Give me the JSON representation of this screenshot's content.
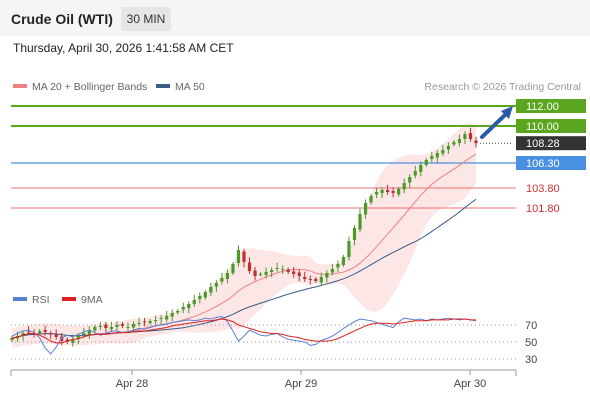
{
  "header": {
    "title": "Crude Oil (WTI)",
    "timeframe": "30 MIN",
    "datetime": "Thursday, April 30, 2026 1:41:58 AM CET"
  },
  "legend": {
    "ma20": "MA 20 + Bollinger Bands",
    "ma50": "MA 50",
    "credit": "Research © 2026 Trading Central",
    "rsi": "RSI",
    "rsi_ma": "9MA"
  },
  "colors": {
    "resistance": "#5aa61e",
    "pivot": "#4a90e2",
    "support": "#e05050",
    "current": "#333333",
    "ma20": "#f08080",
    "ma50": "#3a5a8a",
    "bollinger_fill": "#fde2e2",
    "rsi": "#5b7fd4",
    "rsi_ma": "#e02020",
    "arrow": "#2a5aa8"
  },
  "chart_data": [
    {
      "type": "line",
      "subtype": "candlestick",
      "x": [
        "Apr 28",
        "Apr 29",
        "Apr 30"
      ],
      "levels": [
        {
          "value": 112.0,
          "label": "112.00",
          "kind": "resistance"
        },
        {
          "value": 110.0,
          "label": "110.00",
          "kind": "resistance"
        },
        {
          "value": 108.28,
          "label": "108.28",
          "kind": "current"
        },
        {
          "value": 106.3,
          "label": "106.30",
          "kind": "pivot"
        },
        {
          "value": 103.8,
          "label": "103.80",
          "kind": "support"
        },
        {
          "value": 101.8,
          "label": "101.80",
          "kind": "support"
        }
      ],
      "series": [
        {
          "name": "MA 20 + Bollinger Bands"
        },
        {
          "name": "MA 50"
        }
      ],
      "price_path": [
        88.8,
        89.0,
        89.3,
        89.4,
        89.3,
        89.5,
        89.4,
        89.2,
        88.9,
        88.5,
        88.4,
        88.7,
        89.0,
        89.3,
        89.6,
        89.9,
        90.0,
        89.8,
        89.9,
        90.1,
        90.0,
        89.9,
        90.2,
        90.3,
        90.4,
        90.5,
        90.6,
        90.8,
        91.0,
        91.3,
        91.5,
        91.9,
        92.2,
        92.6,
        93.0,
        93.4,
        93.9,
        94.3,
        94.8,
        95.3,
        96.2,
        97.6,
        96.4,
        95.5,
        95.0,
        95.2,
        95.4,
        95.6,
        95.8,
        95.7,
        95.4,
        95.2,
        95.0,
        94.7,
        94.6,
        94.5,
        94.9,
        95.3,
        95.7,
        96.2,
        96.9,
        98.5,
        99.8,
        101.2,
        102.3,
        103.0,
        103.4,
        103.6,
        103.4,
        103.3,
        103.7,
        104.3,
        104.9,
        105.5,
        106.1,
        106.6,
        107.0,
        107.3,
        107.6,
        108.0,
        108.4,
        108.7,
        109.2,
        108.7,
        108.28
      ],
      "annotation": {
        "type": "arrow",
        "direction": "up",
        "target": "112.00"
      }
    },
    {
      "type": "line",
      "y_ticks": [
        70,
        50,
        30
      ],
      "ylim": [
        20,
        80
      ],
      "series": [
        {
          "name": "RSI"
        },
        {
          "name": "9MA"
        }
      ],
      "rsi_path": [
        57,
        60,
        63,
        64,
        61,
        55,
        43,
        36,
        44,
        55,
        58,
        56,
        59,
        62,
        64,
        61,
        58,
        60,
        63,
        63,
        61,
        62,
        64,
        66,
        65,
        67,
        69,
        70,
        71,
        73,
        74,
        75,
        76,
        75,
        76,
        78,
        77,
        79,
        80,
        74,
        63,
        51,
        57,
        64,
        61,
        58,
        57,
        59,
        60,
        56,
        53,
        52,
        51,
        50,
        46,
        47,
        52,
        54,
        57,
        61,
        66,
        70,
        74,
        77,
        76,
        75,
        73,
        71,
        69,
        67,
        74,
        78,
        77,
        76,
        77,
        75,
        77,
        76,
        77,
        78,
        77,
        76,
        77,
        76,
        75
      ],
      "rsi_ma_path": [
        54,
        56,
        58,
        60,
        60,
        58,
        55,
        51,
        49,
        49,
        51,
        53,
        54,
        56,
        58,
        59,
        59,
        59,
        60,
        61,
        61,
        61,
        62,
        63,
        63,
        64,
        65,
        66,
        67,
        69,
        70,
        71,
        72,
        73,
        74,
        75,
        75,
        76,
        77,
        76,
        74,
        70,
        68,
        66,
        64,
        62,
        61,
        60,
        60,
        59,
        57,
        56,
        55,
        53,
        52,
        51,
        51,
        51,
        52,
        54,
        57,
        60,
        63,
        66,
        69,
        71,
        72,
        72,
        72,
        71,
        72,
        73,
        74,
        75,
        75,
        75,
        76,
        76,
        76,
        76,
        77,
        77,
        77,
        76,
        76
      ]
    }
  ]
}
